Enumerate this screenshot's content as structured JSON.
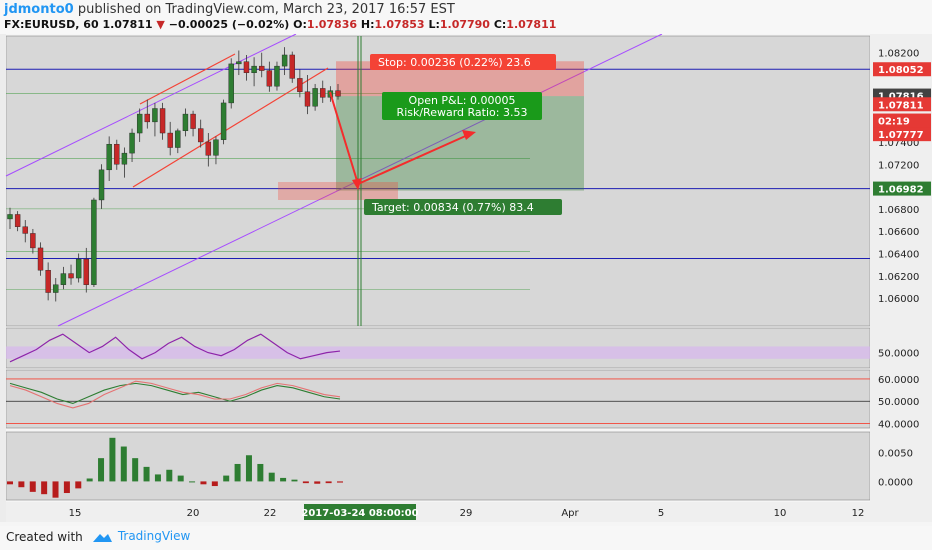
{
  "header": {
    "username": "jdmonto0",
    "published": "published on TradingView.com, March 23, 2017 16:57 EST",
    "symbol": "FX:EURUSD, 60",
    "last": "1.07811",
    "change": "−0.00025 (−0.02%)",
    "o_label": "O:",
    "o": "1.07836",
    "h_label": "H:",
    "h": "1.07853",
    "l_label": "L:",
    "l": "1.07790",
    "c_label": "C:",
    "c": "1.07811"
  },
  "footer": {
    "created": "Created with",
    "brand": "TradingView"
  },
  "colors": {
    "up": "#2e7d32",
    "down": "#c62828",
    "channel": "#a64dff",
    "level": "#1e1eb4",
    "stop_box": "#f44336",
    "target_box": "#2e7d32",
    "pnl_box": "#1a9a1a",
    "arrow": "#f42c2c",
    "rsi": "#8e24aa",
    "stoch_k": "#2e7d32",
    "stoch_d": "#e57373"
  },
  "labels": {
    "stop": "Stop: 0.00236 (0.22%) 23.6",
    "pnl": "Open P&L: 0.00005",
    "rr": "Risk/Reward Ratio: 3.53",
    "target": "Target: 0.00834 (0.77%) 83.4",
    "price_tags": [
      {
        "text": "1.08052",
        "price": 1.08052,
        "bg": "#e53935"
      },
      {
        "text": "1.07816",
        "price": 1.07816,
        "bg": "#424242"
      },
      {
        "text": "1.07811",
        "price": 1.07738,
        "bg": "#e53935"
      },
      {
        "text": "02:19",
        "price": 1.07592,
        "bg": "#e53935"
      },
      {
        "text": "1.07777",
        "price": 1.0747,
        "bg": "#e53935"
      },
      {
        "text": "1.06982",
        "price": 1.06982,
        "bg": "#2e7d32"
      }
    ],
    "time_tag": "2017-03-24 08:00:00"
  },
  "chart_data": [
    {
      "type": "candlestick",
      "title": "",
      "ylim": [
        1.0575,
        1.0835
      ],
      "y_ticks": [
        "1.08200",
        "1.07400",
        "1.07200",
        "1.07000",
        "1.06800",
        "1.06600",
        "1.06400",
        "1.06200",
        "1.06000"
      ],
      "x_ticks": [
        "15",
        "20",
        "22",
        "29",
        "Apr",
        "5",
        "10",
        "12"
      ],
      "series": [
        {
          "name": "",
          "values": [
            [
              1.0671,
              1.0681,
              1.0662,
              1.0675
            ],
            [
              1.0675,
              1.0678,
              1.066,
              1.0664
            ],
            [
              1.0664,
              1.067,
              1.065,
              1.0658
            ],
            [
              1.0658,
              1.0662,
              1.064,
              1.0645
            ],
            [
              1.0645,
              1.065,
              1.062,
              1.0625
            ],
            [
              1.0625,
              1.0632,
              1.0598,
              1.0605
            ],
            [
              1.0605,
              1.0618,
              1.0597,
              1.0612
            ],
            [
              1.0612,
              1.0628,
              1.0608,
              1.0622
            ],
            [
              1.0622,
              1.063,
              1.0612,
              1.0618
            ],
            [
              1.0618,
              1.064,
              1.0614,
              1.0635
            ],
            [
              1.0635,
              1.0645,
              1.0605,
              1.0612
            ],
            [
              1.0612,
              1.069,
              1.061,
              1.0688
            ],
            [
              1.0688,
              1.072,
              1.068,
              1.0715
            ],
            [
              1.0715,
              1.0745,
              1.0705,
              1.0738
            ],
            [
              1.0738,
              1.0742,
              1.0715,
              1.072
            ],
            [
              1.072,
              1.0735,
              1.0708,
              1.073
            ],
            [
              1.073,
              1.0752,
              1.0722,
              1.0748
            ],
            [
              1.0748,
              1.077,
              1.074,
              1.0765
            ],
            [
              1.0765,
              1.0778,
              1.0752,
              1.0758
            ],
            [
              1.0758,
              1.0775,
              1.0745,
              1.077
            ],
            [
              1.077,
              1.0775,
              1.0742,
              1.0748
            ],
            [
              1.0748,
              1.0758,
              1.0728,
              1.0735
            ],
            [
              1.0735,
              1.0752,
              1.073,
              1.075
            ],
            [
              1.075,
              1.077,
              1.0745,
              1.0765
            ],
            [
              1.0765,
              1.0768,
              1.0745,
              1.0752
            ],
            [
              1.0752,
              1.076,
              1.0735,
              1.074
            ],
            [
              1.074,
              1.0748,
              1.0718,
              1.0728
            ],
            [
              1.0728,
              1.0745,
              1.072,
              1.0742
            ],
            [
              1.0742,
              1.0778,
              1.0738,
              1.0775
            ],
            [
              1.0775,
              1.0815,
              1.077,
              1.081
            ],
            [
              1.081,
              1.0822,
              1.08,
              1.0812
            ],
            [
              1.0812,
              1.0818,
              1.0795,
              1.0802
            ],
            [
              1.0802,
              1.0816,
              1.079,
              1.0808
            ],
            [
              1.0808,
              1.082,
              1.0798,
              1.0804
            ],
            [
              1.0804,
              1.0812,
              1.0785,
              1.079
            ],
            [
              1.079,
              1.0812,
              1.0786,
              1.0808
            ],
            [
              1.0808,
              1.0825,
              1.08,
              1.0818
            ],
            [
              1.0818,
              1.0821,
              1.0793,
              1.0797
            ],
            [
              1.0797,
              1.0805,
              1.078,
              1.0785
            ],
            [
              1.0785,
              1.08,
              1.0765,
              1.0772
            ],
            [
              1.0772,
              1.0792,
              1.0768,
              1.0788
            ],
            [
              1.0788,
              1.0795,
              1.0775,
              1.078
            ],
            [
              1.078,
              1.079,
              1.0776,
              1.0786
            ],
            [
              1.0786,
              1.0792,
              1.0778,
              1.0781
            ]
          ]
        }
      ]
    },
    {
      "type": "line",
      "title": "",
      "ylim": [
        45,
        58
      ],
      "y_ticks": [
        "50.0000"
      ],
      "series": [
        {
          "name": "",
          "values": [
            47,
            49,
            51,
            54,
            56,
            53,
            50,
            52,
            55,
            51,
            48,
            50,
            53,
            55,
            52,
            50,
            49,
            51,
            54,
            56,
            53,
            50,
            48,
            49,
            50,
            50.5
          ]
        }
      ]
    },
    {
      "type": "line",
      "title": "",
      "ylim": [
        38,
        64
      ],
      "y_ticks": [
        "60.0000",
        "50.0000",
        "40.0000"
      ],
      "series": [
        {
          "name": "",
          "values": [
            58,
            56,
            54,
            51,
            49,
            52,
            55,
            57,
            58,
            57,
            55,
            53,
            54,
            52,
            50,
            52,
            55,
            57,
            56,
            54,
            52,
            51
          ]
        },
        {
          "name": "",
          "values": [
            57,
            55,
            52,
            49,
            47,
            49,
            53,
            56,
            59,
            58,
            56,
            54,
            53,
            51,
            51,
            53,
            56,
            58,
            57,
            55,
            53,
            52
          ]
        }
      ]
    },
    {
      "type": "bar",
      "title": "",
      "ylim": [
        -0.0032,
        0.0085
      ],
      "y_ticks": [
        "0.0050",
        "0.0000"
      ],
      "values": [
        -0.0005,
        -0.001,
        -0.0018,
        -0.0022,
        -0.0028,
        -0.002,
        -0.0012,
        0.0005,
        0.004,
        0.0075,
        0.006,
        0.004,
        0.0025,
        0.0012,
        0.002,
        0.001,
        0.0,
        -0.0005,
        -0.0008,
        0.001,
        0.003,
        0.0045,
        0.003,
        0.0015,
        0.0006,
        0.0003,
        -0.0003,
        -0.0004,
        -0.0003,
        -0.0002
      ]
    }
  ]
}
